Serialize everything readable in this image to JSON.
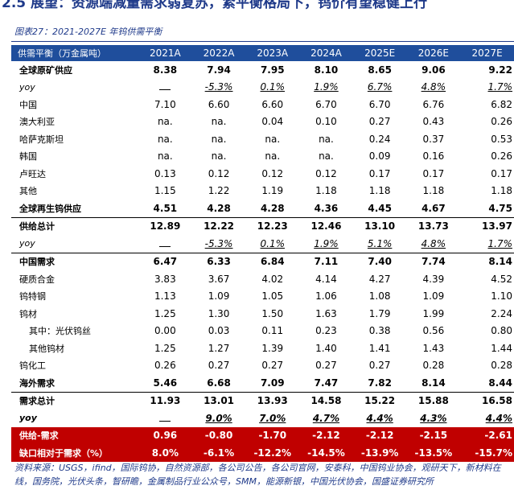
{
  "header": {
    "title": "2.5 展望：资源端减量需求弱复苏，紧平衡格局下，钨价有望稳健上行"
  },
  "table": {
    "caption": "图表27：2021-2027E 年钨供需平衡",
    "columns": [
      "供需平衡（万金属吨）",
      "2021A",
      "2022A",
      "2023A",
      "2024A",
      "2025E",
      "2026E",
      "2027E"
    ],
    "rows": [
      [
        "全球原矿供应",
        "8.38",
        "7.94",
        "7.95",
        "8.10",
        "8.65",
        "9.06",
        "9.22"
      ],
      [
        "yoy",
        null,
        "-5.3%",
        "0.1%",
        "1.9%",
        "6.7%",
        "4.8%",
        "1.7%"
      ],
      [
        "中国",
        "7.10",
        "6.60",
        "6.60",
        "6.70",
        "6.70",
        "6.76",
        "6.82"
      ],
      [
        "澳大利亚",
        "na.",
        "na.",
        "0.04",
        "0.10",
        "0.27",
        "0.43",
        "0.26"
      ],
      [
        "哈萨克斯坦",
        "na.",
        "na.",
        "na.",
        "na.",
        "0.24",
        "0.37",
        "0.53"
      ],
      [
        "韩国",
        "na.",
        "na.",
        "na.",
        "na.",
        "0.09",
        "0.16",
        "0.26"
      ],
      [
        "卢旺达",
        "0.13",
        "0.12",
        "0.12",
        "0.12",
        "0.17",
        "0.17",
        "0.17"
      ],
      [
        "其他",
        "1.15",
        "1.22",
        "1.19",
        "1.18",
        "1.18",
        "1.18",
        "1.18"
      ],
      [
        "全球再生钨供应",
        "4.51",
        "4.28",
        "4.28",
        "4.36",
        "4.45",
        "4.67",
        "4.75"
      ],
      [
        "供给总计",
        "12.89",
        "12.22",
        "12.23",
        "12.46",
        "13.10",
        "13.73",
        "13.97"
      ],
      [
        "yoy",
        null,
        "-5.3%",
        "0.1%",
        "1.9%",
        "5.1%",
        "4.8%",
        "1.7%"
      ],
      [
        "中国需求",
        "6.47",
        "6.33",
        "6.84",
        "7.11",
        "7.40",
        "7.74",
        "8.14"
      ],
      [
        "硬质合金",
        "3.83",
        "3.67",
        "4.02",
        "4.14",
        "4.27",
        "4.39",
        "4.52"
      ],
      [
        "钨特钢",
        "1.13",
        "1.09",
        "1.05",
        "1.06",
        "1.08",
        "1.09",
        "1.10"
      ],
      [
        "钨材",
        "1.25",
        "1.30",
        "1.50",
        "1.63",
        "1.79",
        "1.99",
        "2.24"
      ],
      [
        "其中：光伏钨丝",
        "0.00",
        "0.03",
        "0.11",
        "0.23",
        "0.38",
        "0.56",
        "0.80"
      ],
      [
        "其他钨材",
        "1.25",
        "1.27",
        "1.39",
        "1.40",
        "1.41",
        "1.43",
        "1.44"
      ],
      [
        "钨化工",
        "0.26",
        "0.27",
        "0.27",
        "0.27",
        "0.27",
        "0.28",
        "0.28"
      ],
      [
        "海外需求",
        "5.46",
        "6.68",
        "7.09",
        "7.47",
        "7.82",
        "8.14",
        "8.44"
      ],
      [
        "需求总计",
        "11.93",
        "13.01",
        "13.93",
        "14.58",
        "15.22",
        "15.88",
        "16.58"
      ],
      [
        "yoy",
        null,
        "9.0%",
        "7.0%",
        "4.7%",
        "4.4%",
        "4.3%",
        "4.4%"
      ],
      [
        "供给-需求",
        "0.96",
        "-0.80",
        "-1.70",
        "-2.12",
        "-2.12",
        "-2.15",
        "-2.61"
      ],
      [
        "缺口相对于需求（%）",
        "8.0%",
        "-6.1%",
        "-12.2%",
        "-14.5%",
        "-13.9%",
        "-13.5%",
        "-15.7%"
      ]
    ]
  },
  "footer": {
    "source": "资料来源：USGS，ifind，国际钨协，自然资源部，各公司公告，各公司官网，安泰科，中国钨业协会，观研天下，新材料在线，国务院，光伏头条，智研瞻，金属制品行业公众号，SMM，能源新银，中国光伏协会，国盛证券研究所"
  }
}
